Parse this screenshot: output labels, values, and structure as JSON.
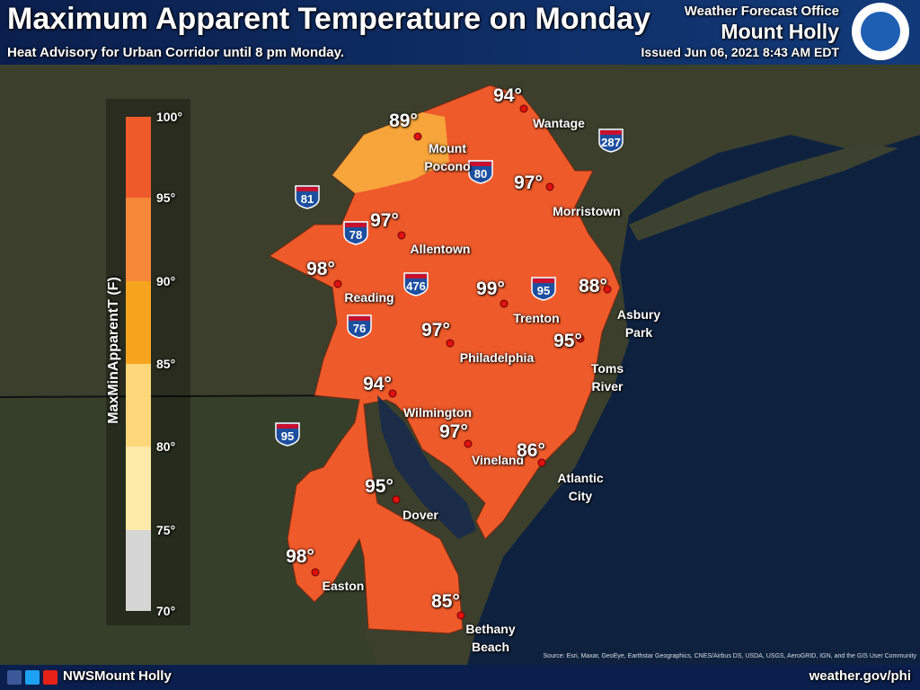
{
  "header": {
    "title": "Maximum Apparent Temperature on Monday",
    "subtitle": "Heat Advisory for Urban Corridor until 8 pm Monday.",
    "office": "Weather Forecast Office",
    "office_name": "Mount Holly",
    "issued": "Issued Jun 06, 2021 8:43 AM EDT"
  },
  "legend": {
    "title": "MaxMinApparentT (F)",
    "ticks": [
      "100°",
      "95°",
      "90°",
      "85°",
      "80°",
      "75°",
      "70°"
    ]
  },
  "points": [
    {
      "temp": "94°",
      "city": "Wantage"
    },
    {
      "temp": "89°",
      "city": "Mount\nPocono"
    },
    {
      "temp": "97°",
      "city": "Morristown"
    },
    {
      "temp": "97°",
      "city": "Allentown"
    },
    {
      "temp": "98°",
      "city": "Reading"
    },
    {
      "temp": "99°",
      "city": "Trenton"
    },
    {
      "temp": "88°",
      "city": "Asbury\nPark"
    },
    {
      "temp": "97°",
      "city": "Philadelphia"
    },
    {
      "temp": "95°",
      "city": "Toms\nRiver"
    },
    {
      "temp": "94°",
      "city": "Wilmington"
    },
    {
      "temp": "97°",
      "city": "Vineland"
    },
    {
      "temp": "86°",
      "city": "Atlantic\nCity"
    },
    {
      "temp": "95°",
      "city": "Dover"
    },
    {
      "temp": "98°",
      "city": "Easton"
    },
    {
      "temp": "85°",
      "city": "Bethany\nBeach"
    }
  ],
  "shields": [
    "287",
    "81",
    "80",
    "78",
    "476",
    "95",
    "76",
    "95"
  ],
  "source": "Source: Esri, Maxar, GeoEye, Earthstar Geographics, CNES/Airbus DS, USDA, USGS, AeroGRID, IGN, and the GIS User Community",
  "footer": {
    "social": "NWSMount Holly",
    "url": "weather.gov/phi"
  }
}
